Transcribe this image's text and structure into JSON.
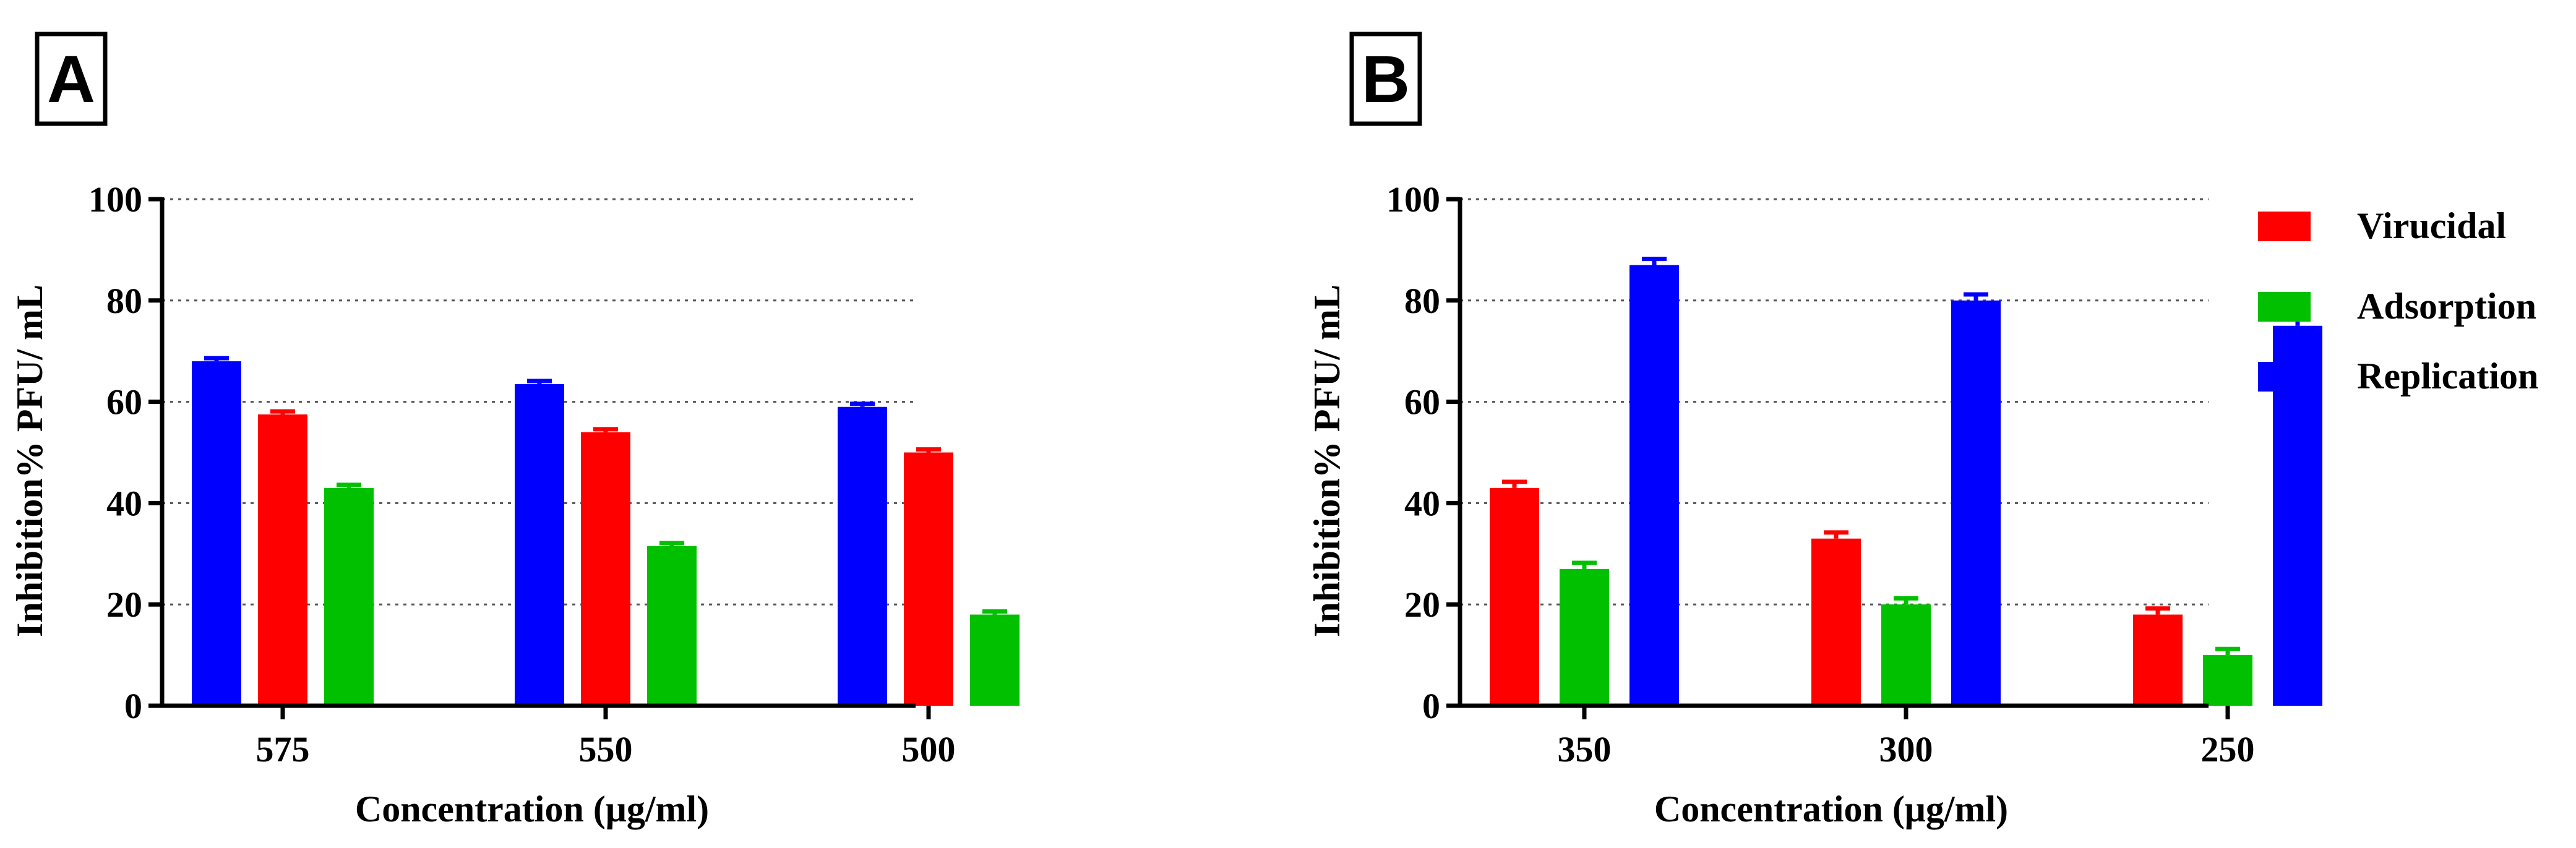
{
  "figure": {
    "panel_labels": [
      "A",
      "B"
    ]
  },
  "legend": {
    "entries": [
      {
        "name": "Virucidal",
        "color": "#ff0000"
      },
      {
        "name": "Adsorption",
        "color": "#00c000"
      },
      {
        "name": "Replication",
        "color": "#0000ff"
      }
    ]
  },
  "chart_data": [
    {
      "panel": "A",
      "type": "bar",
      "title": "",
      "xlabel": "Concentration (μg/ml)",
      "ylabel": "Inhibition% PFU/ mL",
      "ylim": [
        0,
        100
      ],
      "yticks": [
        0,
        20,
        40,
        60,
        80,
        100
      ],
      "grid": "horizontal dotted",
      "categories": [
        "575",
        "550",
        "500"
      ],
      "series": [
        {
          "name": "Replication",
          "color": "#0000ff",
          "values": [
            68,
            63.5,
            59
          ],
          "errors": [
            0.6,
            0.6,
            0.6
          ]
        },
        {
          "name": "Virucidal",
          "color": "#ff0000",
          "values": [
            57.5,
            54,
            50
          ],
          "errors": [
            0.6,
            0.6,
            0.6
          ]
        },
        {
          "name": "Adsorption",
          "color": "#00c000",
          "values": [
            43,
            31.5,
            18
          ],
          "errors": [
            0.6,
            0.6,
            0.6
          ]
        }
      ]
    },
    {
      "panel": "B",
      "type": "bar",
      "title": "",
      "xlabel": "Concentration (μg/ml)",
      "ylabel": "Inhibition% PFU/ mL",
      "ylim": [
        0,
        100
      ],
      "yticks": [
        0,
        20,
        40,
        60,
        80,
        100
      ],
      "grid": "horizontal dotted",
      "legend": "right",
      "categories": [
        "350",
        "300",
        "250"
      ],
      "series": [
        {
          "name": "Virucidal",
          "color": "#ff0000",
          "values": [
            43,
            33,
            18
          ],
          "errors": [
            1.2,
            1.2,
            1.2
          ]
        },
        {
          "name": "Adsorption",
          "color": "#00c000",
          "values": [
            27,
            20,
            10
          ],
          "errors": [
            1.2,
            1.2,
            1.2
          ]
        },
        {
          "name": "Replication",
          "color": "#0000ff",
          "values": [
            87,
            80,
            75
          ],
          "errors": [
            1.2,
            1.2,
            2.0
          ]
        }
      ]
    }
  ]
}
